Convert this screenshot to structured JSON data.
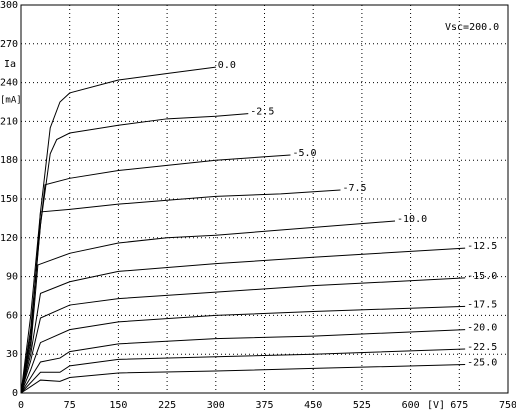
{
  "chart_data": {
    "type": "line",
    "x_label": "[V]",
    "y_label": [
      "Ia",
      "[mA]"
    ],
    "annotation": "Vsc=200.0",
    "xlim": [
      0,
      750
    ],
    "xticks": [
      0,
      75,
      150,
      225,
      300,
      375,
      450,
      525,
      600,
      675,
      750
    ],
    "ylim": [
      0,
      300
    ],
    "yticks": [
      0,
      30,
      60,
      90,
      120,
      150,
      180,
      210,
      240,
      270,
      300
    ],
    "grid": true,
    "color": "#000000",
    "series": [
      {
        "name": "0.0",
        "x": [
          0,
          15,
          30,
          45,
          60,
          75,
          150,
          225,
          300
        ],
        "values": [
          0,
          60,
          140,
          205,
          225,
          232,
          242,
          247,
          252
        ]
      },
      {
        "name": "-2.5",
        "x": [
          0,
          15,
          30,
          45,
          55,
          75,
          150,
          225,
          300,
          350
        ],
        "values": [
          0,
          50,
          130,
          185,
          196,
          201,
          207,
          212,
          214,
          216
        ]
      },
      {
        "name": "-5.0",
        "x": [
          0,
          15,
          30,
          37,
          75,
          150,
          225,
          300,
          415
        ],
        "values": [
          0,
          45,
          130,
          161,
          166,
          172,
          176,
          180,
          184
        ]
      },
      {
        "name": "-7.5",
        "x": [
          0,
          15,
          30,
          75,
          150,
          225,
          300,
          400,
          492
        ],
        "values": [
          0,
          40,
          140,
          142,
          146,
          149,
          152,
          154,
          157
        ]
      },
      {
        "name": "-10.0",
        "x": [
          0,
          15,
          26,
          75,
          150,
          225,
          300,
          400,
          576
        ],
        "values": [
          0,
          35,
          99,
          108,
          116,
          120,
          122,
          126,
          133
        ]
      },
      {
        "name": "-12.5",
        "x": [
          0,
          15,
          30,
          75,
          150,
          300,
          450,
          684
        ],
        "values": [
          0,
          30,
          77,
          86,
          94,
          100,
          105,
          112
        ]
      },
      {
        "name": "-15.0",
        "x": [
          0,
          15,
          30,
          75,
          150,
          300,
          450,
          684
        ],
        "values": [
          0,
          25,
          58,
          68,
          73,
          78,
          83,
          89
        ]
      },
      {
        "name": "-17.5",
        "x": [
          0,
          15,
          30,
          75,
          150,
          300,
          450,
          684
        ],
        "values": [
          0,
          18,
          39,
          49,
          55,
          60,
          63,
          67
        ]
      },
      {
        "name": "-20.0",
        "x": [
          0,
          15,
          30,
          60,
          75,
          150,
          300,
          450,
          684
        ],
        "values": [
          0,
          12,
          24,
          27,
          32,
          38,
          42,
          44,
          49
        ]
      },
      {
        "name": "-22.5",
        "x": [
          0,
          15,
          30,
          60,
          75,
          150,
          300,
          450,
          684
        ],
        "values": [
          0,
          8,
          16,
          16,
          21,
          26,
          28,
          30,
          34
        ]
      },
      {
        "name": "-25.0",
        "x": [
          0,
          15,
          30,
          60,
          75,
          150,
          300,
          450,
          684
        ],
        "values": [
          0,
          5,
          10,
          9,
          12,
          15.5,
          17,
          19,
          22
        ]
      }
    ]
  }
}
